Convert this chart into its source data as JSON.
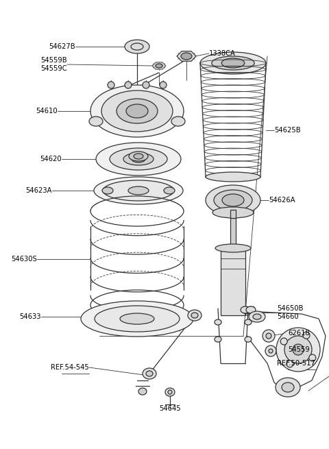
{
  "bg_color": "#ffffff",
  "line_color": "#333333",
  "text_color": "#000000",
  "fs": 7.2,
  "lw": 0.9,
  "fig_w": 4.8,
  "fig_h": 6.55,
  "dpi": 100,
  "xlim": [
    0,
    480
  ],
  "ylim": [
    0,
    655
  ]
}
